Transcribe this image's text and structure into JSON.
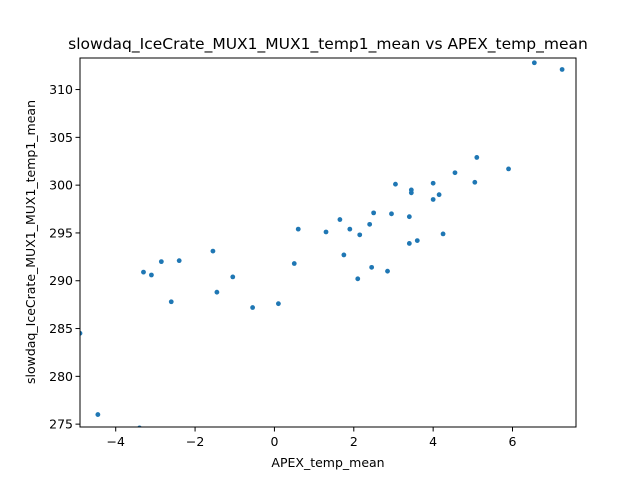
{
  "chart_data": {
    "type": "scatter",
    "title": "slowdaq_IceCrate_MUX1_MUX1_temp1_mean vs APEX_temp_mean",
    "xlabel": "APEX_temp_mean",
    "ylabel": "slowdaq_IceCrate_MUX1_MUX1_temp1_mean",
    "xlim": [
      -4.9,
      7.6
    ],
    "ylim": [
      274.7,
      313.3
    ],
    "xticks": [
      -4,
      -2,
      0,
      2,
      4,
      6
    ],
    "yticks": [
      275,
      280,
      285,
      290,
      295,
      300,
      305,
      310
    ],
    "grid": false,
    "color": "#1f77b4",
    "points": [
      {
        "x": -4.9,
        "y": 284.5
      },
      {
        "x": -4.45,
        "y": 276.0
      },
      {
        "x": -3.4,
        "y": 274.6
      },
      {
        "x": -3.3,
        "y": 290.9
      },
      {
        "x": -3.1,
        "y": 290.6
      },
      {
        "x": -2.85,
        "y": 292.0
      },
      {
        "x": -2.6,
        "y": 287.8
      },
      {
        "x": -2.4,
        "y": 292.1
      },
      {
        "x": -1.55,
        "y": 293.1
      },
      {
        "x": -1.45,
        "y": 288.8
      },
      {
        "x": -1.05,
        "y": 290.4
      },
      {
        "x": -0.55,
        "y": 287.2
      },
      {
        "x": 0.1,
        "y": 287.6
      },
      {
        "x": 0.5,
        "y": 291.8
      },
      {
        "x": 0.6,
        "y": 295.4
      },
      {
        "x": 1.3,
        "y": 295.1
      },
      {
        "x": 1.65,
        "y": 296.4
      },
      {
        "x": 1.75,
        "y": 292.7
      },
      {
        "x": 1.9,
        "y": 295.4
      },
      {
        "x": 2.1,
        "y": 290.2
      },
      {
        "x": 2.15,
        "y": 294.8
      },
      {
        "x": 2.4,
        "y": 295.9
      },
      {
        "x": 2.45,
        "y": 291.4
      },
      {
        "x": 2.5,
        "y": 297.1
      },
      {
        "x": 2.85,
        "y": 291.0
      },
      {
        "x": 2.95,
        "y": 297.0
      },
      {
        "x": 3.05,
        "y": 300.1
      },
      {
        "x": 3.4,
        "y": 296.7
      },
      {
        "x": 3.4,
        "y": 293.9
      },
      {
        "x": 3.45,
        "y": 299.2
      },
      {
        "x": 3.45,
        "y": 299.5
      },
      {
        "x": 3.6,
        "y": 294.2
      },
      {
        "x": 4.0,
        "y": 298.5
      },
      {
        "x": 4.0,
        "y": 300.2
      },
      {
        "x": 4.15,
        "y": 299.0
      },
      {
        "x": 4.25,
        "y": 294.9
      },
      {
        "x": 4.55,
        "y": 301.3
      },
      {
        "x": 5.05,
        "y": 300.3
      },
      {
        "x": 5.1,
        "y": 302.9
      },
      {
        "x": 5.9,
        "y": 301.7
      },
      {
        "x": 6.55,
        "y": 312.8
      },
      {
        "x": 7.25,
        "y": 312.1
      }
    ]
  }
}
